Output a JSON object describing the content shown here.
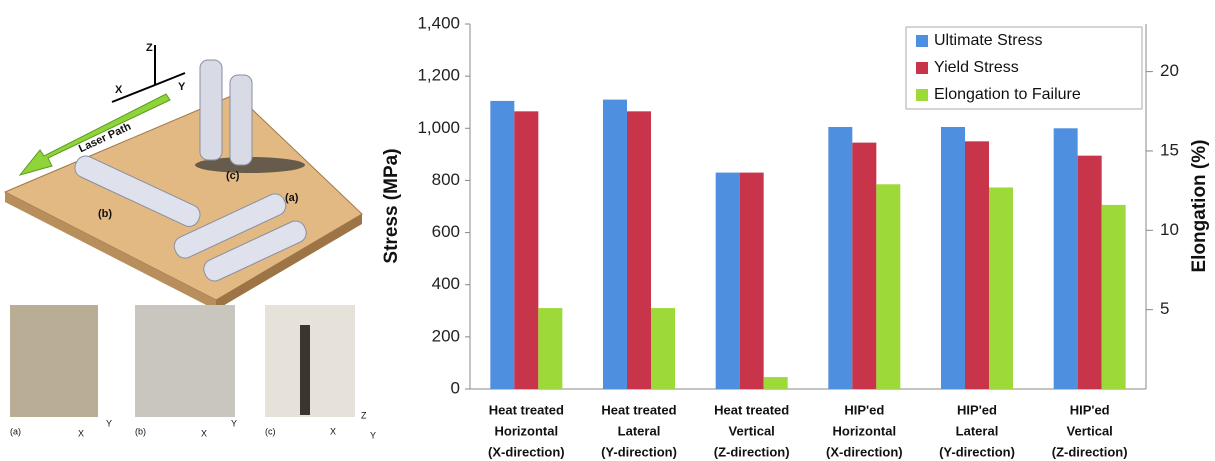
{
  "chart_data": {
    "type": "bar",
    "categories": [
      [
        "Heat treated",
        "Horizontal",
        "(X-direction)"
      ],
      [
        "Heat treated",
        "Lateral",
        "(Y-direction)"
      ],
      [
        "Heat treated",
        "Vertical",
        "(Z-direction)"
      ],
      [
        "HIP'ed",
        "Horizontal",
        "(X-direction)"
      ],
      [
        "HIP'ed",
        "Lateral",
        "(Y-direction)"
      ],
      [
        "HIP'ed",
        "Vertical",
        "(Z-direction)"
      ]
    ],
    "series": [
      {
        "name": "Ultimate Stress",
        "color": "#4f8fe0",
        "values": [
          1105,
          1110,
          830,
          1005,
          1005,
          1000
        ]
      },
      {
        "name": "Yield Stress",
        "color": "#c8344a",
        "values": [
          1065,
          1065,
          830,
          945,
          950,
          895
        ]
      },
      {
        "name": "Elongation to Failure",
        "color": "#9ed93a",
        "axis": "y2",
        "values": [
          5.1,
          5.1,
          0.75,
          12.9,
          12.7,
          11.6
        ]
      }
    ],
    "y_label": "Stress (MPa)",
    "y2_label": "Elongation (%)",
    "ylim": [
      0,
      1400
    ],
    "yticks": [
      0,
      200,
      400,
      600,
      800,
      {
        "value": 1000,
        "label": "1,000"
      },
      {
        "value": 1200,
        "label": "1,200"
      },
      {
        "value": 1400,
        "label": "1,400"
      }
    ],
    "y2lim": [
      0,
      23
    ],
    "y2ticks": [
      5,
      10,
      15,
      20
    ],
    "grid": false,
    "legend": "upper right"
  },
  "illustration": {
    "axes": [
      "Z",
      "X",
      "Y"
    ],
    "laser_path": "Laser Path",
    "labels": [
      "(c)",
      "(a)",
      "(b)"
    ]
  },
  "micrographs": [
    {
      "label": "(a)",
      "axes": [
        "Y",
        "X"
      ]
    },
    {
      "label": "(b)",
      "axes": [
        "Y",
        "X"
      ]
    },
    {
      "label": "(c)",
      "axes": [
        "Z",
        "X",
        "Y"
      ]
    }
  ]
}
